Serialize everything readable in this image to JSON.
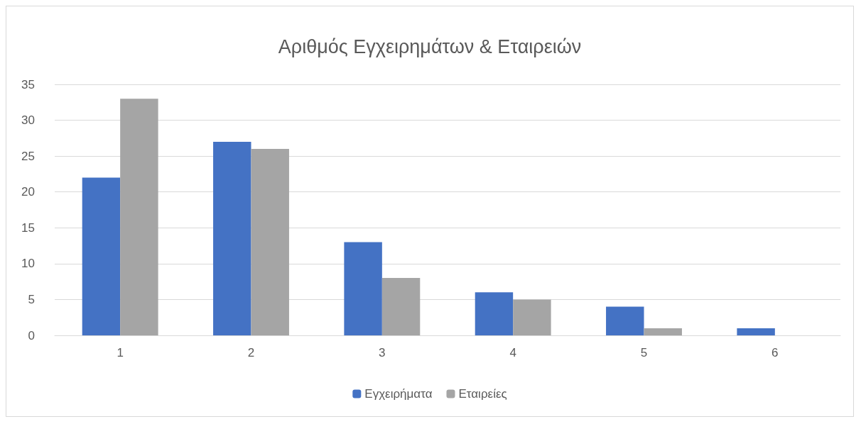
{
  "chart_data": {
    "type": "bar",
    "title": "Αριθμός Εγχειρημάτων & Εταιρειών",
    "categories": [
      "1",
      "2",
      "3",
      "4",
      "5",
      "6"
    ],
    "series": [
      {
        "name": "Εγχειρήματα",
        "color": "#4472c4",
        "values": [
          22,
          27,
          13,
          6,
          4,
          1
        ]
      },
      {
        "name": "Εταιρείες",
        "color": "#a5a5a5",
        "values": [
          33,
          26,
          8,
          5,
          1,
          0
        ]
      }
    ],
    "ylim": [
      0,
      35
    ],
    "yticks": [
      0,
      5,
      10,
      15,
      20,
      25,
      30,
      35
    ],
    "grid": "y",
    "legend": "bottom"
  }
}
